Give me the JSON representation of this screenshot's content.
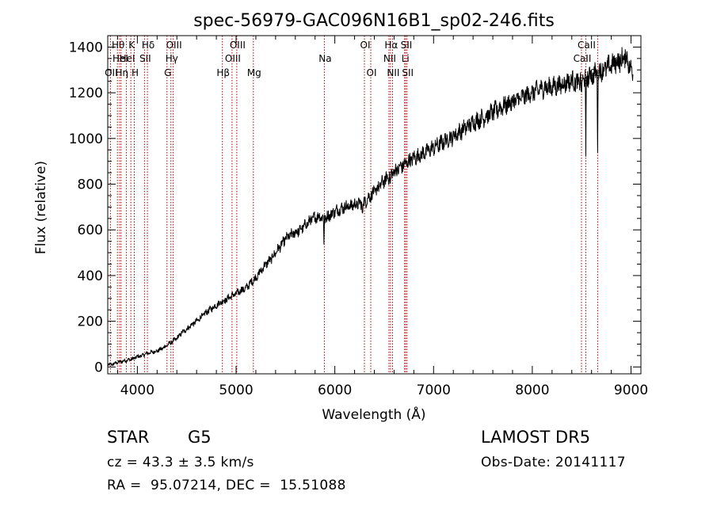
{
  "chart_data": {
    "type": "line",
    "title": "spec-56979-GAC096N16B1_sp02-246.fits",
    "xlabel": "Wavelength (Å)",
    "ylabel": "Flux (relative)",
    "xlim": [
      3700,
      9100
    ],
    "ylim": [
      -30,
      1450
    ],
    "xticks": [
      4000,
      5000,
      6000,
      7000,
      8000,
      9000
    ],
    "yticks": [
      0,
      200,
      400,
      600,
      800,
      1000,
      1200,
      1400
    ],
    "grid": false,
    "line_color": "#000000",
    "marker_color": "#b00000",
    "spectrum": {
      "x": [
        3700,
        3750,
        3800,
        3850,
        3900,
        3950,
        4000,
        4050,
        4100,
        4150,
        4200,
        4250,
        4300,
        4350,
        4400,
        4450,
        4500,
        4550,
        4600,
        4650,
        4700,
        4750,
        4800,
        4850,
        4900,
        4950,
        5000,
        5050,
        5100,
        5150,
        5200,
        5250,
        5300,
        5350,
        5400,
        5450,
        5500,
        5550,
        5600,
        5650,
        5700,
        5750,
        5800,
        5850,
        5900,
        5950,
        6000,
        6050,
        6100,
        6150,
        6200,
        6250,
        6300,
        6350,
        6400,
        6450,
        6500,
        6550,
        6600,
        6650,
        6700,
        6750,
        6800,
        6900,
        7000,
        7100,
        7200,
        7300,
        7400,
        7500,
        7600,
        7700,
        7800,
        7900,
        8000,
        8100,
        8200,
        8300,
        8400,
        8450,
        8500,
        8550,
        8600,
        8650,
        8700,
        8750,
        8800,
        8850,
        8900,
        8950,
        9000,
        9020
      ],
      "y": [
        10,
        12,
        20,
        25,
        30,
        35,
        45,
        50,
        60,
        65,
        70,
        80,
        95,
        110,
        125,
        150,
        165,
        185,
        200,
        220,
        240,
        255,
        270,
        285,
        295,
        310,
        320,
        335,
        345,
        370,
        390,
        420,
        450,
        470,
        500,
        530,
        560,
        575,
        590,
        600,
        620,
        640,
        655,
        660,
        650,
        665,
        680,
        690,
        700,
        705,
        710,
        715,
        720,
        745,
        765,
        790,
        815,
        835,
        855,
        870,
        885,
        900,
        915,
        935,
        960,
        985,
        1010,
        1040,
        1070,
        1090,
        1115,
        1140,
        1160,
        1180,
        1200,
        1220,
        1225,
        1235,
        1255,
        1240,
        1260,
        1270,
        1275,
        1285,
        1300,
        1310,
        1320,
        1335,
        1345,
        1360,
        1300,
        1290
      ]
    },
    "absorption_features": [
      {
        "x": 5890,
        "depth": 110
      },
      {
        "x": 6280,
        "depth": 60
      },
      {
        "x": 6563,
        "depth": 50
      },
      {
        "x": 8498,
        "depth": 120
      },
      {
        "x": 8542,
        "depth": 380
      },
      {
        "x": 8662,
        "depth": 320
      },
      {
        "x": 8900,
        "depth": 40
      }
    ],
    "line_markers": [
      {
        "x": 3727,
        "label": "OII",
        "row": 2
      },
      {
        "x": 3798,
        "label": "Hθ",
        "row": 0
      },
      {
        "x": 3820,
        "label": "HeI",
        "row": 1
      },
      {
        "x": 3835,
        "label": "Hη",
        "row": 2
      },
      {
        "x": 3889,
        "label": "HeI",
        "row": 1
      },
      {
        "x": 3934,
        "label": "K",
        "row": 0
      },
      {
        "x": 3969,
        "label": "H",
        "row": 2
      },
      {
        "x": 4072,
        "label": "SII",
        "row": 1
      },
      {
        "x": 4102,
        "label": "Hδ",
        "row": 0
      },
      {
        "x": 4300,
        "label": "G",
        "row": 2
      },
      {
        "x": 4340,
        "label": "Hγ",
        "row": 1
      },
      {
        "x": 4363,
        "label": "OIII",
        "row": 0
      },
      {
        "x": 4861,
        "label": "Hβ",
        "row": 2
      },
      {
        "x": 4959,
        "label": "OIII",
        "row": 1
      },
      {
        "x": 5007,
        "label": "OIII",
        "row": 0
      },
      {
        "x": 5175,
        "label": "Mg",
        "row": 2
      },
      {
        "x": 5894,
        "label": "Na",
        "row": 1
      },
      {
        "x": 6300,
        "label": "OI",
        "row": 0
      },
      {
        "x": 6364,
        "label": "OI",
        "row": 2
      },
      {
        "x": 6548,
        "label": "NII",
        "row": 1
      },
      {
        "x": 6563,
        "label": "Hα",
        "row": 0
      },
      {
        "x": 6584,
        "label": "NII",
        "row": 2
      },
      {
        "x": 6707,
        "label": "Li",
        "row": 1
      },
      {
        "x": 6717,
        "label": "SII",
        "row": 0
      },
      {
        "x": 6731,
        "label": "SII",
        "row": 2
      },
      {
        "x": 8498,
        "label": "CaII",
        "row": 1
      },
      {
        "x": 8542,
        "label": "CaII",
        "row": 0
      },
      {
        "x": 8662,
        "label": "CaII",
        "row": 2
      }
    ]
  },
  "info": {
    "class": "STAR",
    "subclass": "G5",
    "survey": "LAMOST DR5",
    "cz": "cz = 43.3 ± 3.5 km/s",
    "obs_date": "Obs-Date: 20141117",
    "coords": "RA =  95.07214, DEC =  15.51088"
  }
}
